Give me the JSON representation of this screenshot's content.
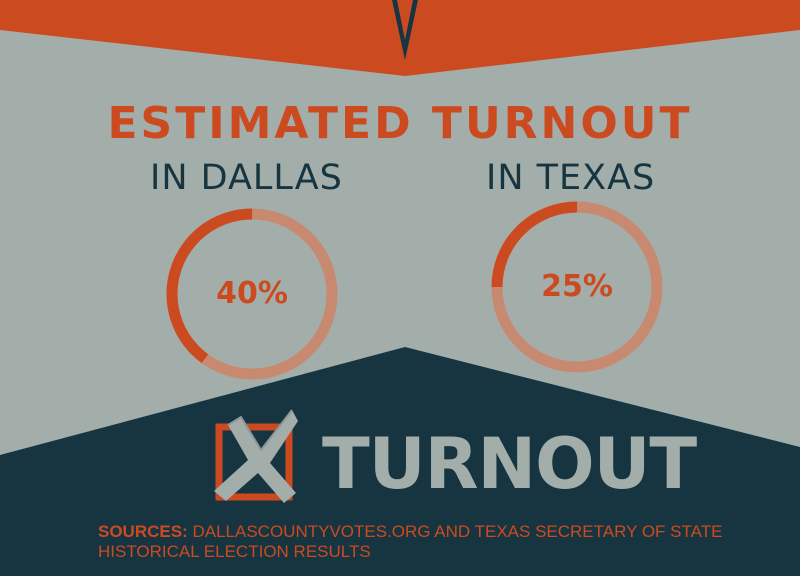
{
  "title": "ESTIMATED TURNOUT",
  "regions": [
    {
      "label": "IN DALLAS",
      "percent_text": "40%",
      "value": 40
    },
    {
      "label": "IN TEXAS",
      "percent_text": "25%",
      "value": 25
    }
  ],
  "logo_text": "TURNOUT",
  "sources": {
    "prefix": "SOURCES:",
    "text": "DALLASCOUNTYVOTES.ORG AND TEXAS SECRETARY OF STATE HISTORICAL ELECTION RESULTS"
  },
  "colors": {
    "background": "#a3aeab",
    "accent": "#cc4a20",
    "ring_track": "#c78a70",
    "dark": "#163540"
  }
}
